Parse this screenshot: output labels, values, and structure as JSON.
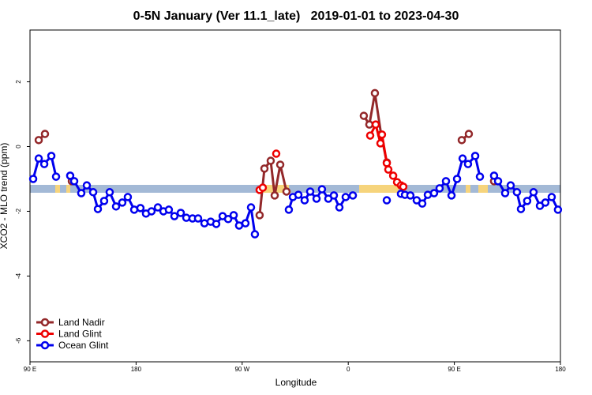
{
  "chart_data": {
    "type": "line",
    "title": "0-5N January (Ver 11.1_late)   2019-01-01 to 2023-04-30",
    "x_label": "Longitude",
    "y_label": "XCO2 - MLO trend (ppm)",
    "xlim": [
      90,
      540
    ],
    "xticks": [
      {
        "value": 90,
        "label": "90 E"
      },
      180,
      {
        "value": 270,
        "label": "90 W"
      },
      {
        "value": 360,
        "label": "0"
      },
      {
        "value": 450,
        "label": "90 E"
      },
      {
        "value": 540,
        "label": "180"
      }
    ],
    "ylim": [
      -6.65,
      3.6
    ],
    "yticks": [
      2,
      0,
      -2,
      -4,
      -6
    ],
    "legend": "bottom-left",
    "series": [
      {
        "name": "Land Nadir",
        "color": "#93282a",
        "x": [
          97.4,
          102.7,
          null,
          125.5,
          null,
          284.8,
          288.9,
          294.2,
          297.6,
          302.3,
          307.6,
          null,
          373.2,
          377.9,
          382.6,
          387.9,
          392.7,
          null,
          456.3,
          462.3,
          null,
          483.7
        ],
        "values": [
          0.2,
          0.39,
          null,
          -1.07,
          null,
          -2.12,
          -0.68,
          -0.44,
          -1.51,
          -0.56,
          -1.39,
          null,
          0.95,
          0.68,
          1.65,
          0.37,
          -0.49,
          null,
          0.2,
          0.39,
          null,
          -1.07
        ]
      },
      {
        "name": "Land Glint",
        "color": "#ee0000",
        "x": [
          284.8,
          287.5,
          null,
          298.9,
          null,
          378.6,
          383.3,
          387.3,
          388.6,
          392.7,
          394.0,
          398.1,
          401.4,
          404.7,
          406.7
        ],
        "values": [
          -1.34,
          -1.27,
          null,
          -0.22,
          null,
          0.34,
          0.68,
          0.1,
          0.37,
          -0.51,
          -0.71,
          -0.9,
          -1.1,
          -1.2,
          -1.24
        ]
      },
      {
        "name": "Ocean Glint",
        "color": "#0000ee",
        "x": [
          92.7,
          97.4,
          102.1,
          108.1,
          112.1,
          null,
          124.1,
          127.5,
          133.5,
          138.2,
          143.6,
          147.6,
          152.9,
          157.6,
          163.0,
          168.3,
          173.0,
          178.4,
          183.7,
          188.4,
          193.1,
          198.5,
          203.2,
          207.8,
          212.5,
          217.9,
          222.6,
          227.9,
          232.6,
          238.0,
          243.3,
          248.0,
          253.4,
          258.1,
          262.8,
          267.4,
          272.8,
          277.5,
          280.8,
          null,
          309.6,
          313.0,
          317.7,
          323.0,
          327.7,
          333.1,
          337.7,
          343.1,
          347.8,
          352.5,
          357.8,
          363.9,
          null,
          392.7,
          null,
          404.7,
          408.1,
          412.7,
          418.1,
          422.8,
          427.5,
          432.8,
          437.5,
          442.9,
          447.6,
          452.3,
          457.0,
          461.6,
          467.7,
          471.7,
          null,
          483.7,
          487.1,
          493.1,
          497.8,
          503.1,
          506.5,
          511.8,
          517.2,
          522.6,
          527.2,
          532.6,
          537.9
        ],
        "values": [
          -1.0,
          -0.37,
          -0.54,
          -0.29,
          -0.93,
          null,
          -0.9,
          -1.07,
          -1.44,
          -1.2,
          -1.41,
          -1.93,
          -1.68,
          -1.41,
          -1.85,
          -1.73,
          -1.56,
          -1.95,
          -1.9,
          -2.07,
          -2.0,
          -1.88,
          -2.0,
          -1.95,
          -2.15,
          -2.05,
          -2.2,
          -2.22,
          -2.22,
          -2.37,
          -2.32,
          -2.39,
          -2.15,
          -2.24,
          -2.12,
          -2.44,
          -2.37,
          -1.88,
          -2.71,
          null,
          -1.95,
          -1.56,
          -1.49,
          -1.66,
          -1.39,
          -1.61,
          -1.32,
          -1.61,
          -1.51,
          -1.88,
          -1.56,
          -1.51,
          null,
          -1.66,
          null,
          -1.46,
          -1.49,
          -1.51,
          -1.66,
          -1.76,
          -1.49,
          -1.44,
          -1.29,
          -1.07,
          -1.51,
          -1.0,
          -0.37,
          -0.54,
          -0.29,
          -0.93,
          null,
          -0.9,
          -1.07,
          -1.44,
          -1.2,
          -1.41,
          -1.93,
          -1.68,
          -1.41,
          -1.83,
          -1.73,
          -1.56,
          -1.95
        ]
      }
    ]
  }
}
